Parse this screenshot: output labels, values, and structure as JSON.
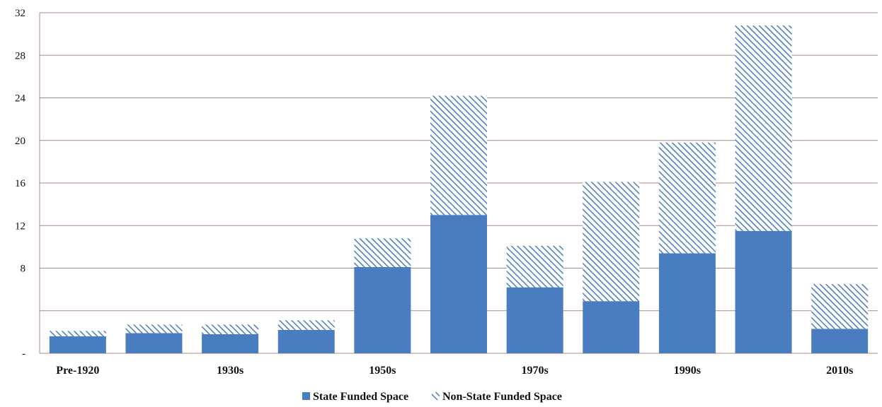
{
  "chart_data": {
    "type": "bar",
    "stacked": true,
    "categories": [
      "Pre-1920",
      "",
      "1930s",
      "",
      "1950s",
      "",
      "1970s",
      "",
      "1990s",
      "",
      "2010s"
    ],
    "series": [
      {
        "name": "State Funded Space",
        "values": [
          1.6,
          1.9,
          1.8,
          2.2,
          8.1,
          13.0,
          6.2,
          4.9,
          9.4,
          11.5,
          2.3
        ],
        "color": "#4a7dc0",
        "pattern": "solid"
      },
      {
        "name": "Non-State Funded Space",
        "values": [
          0.5,
          0.8,
          0.9,
          0.9,
          2.7,
          11.2,
          3.9,
          11.2,
          10.4,
          19.3,
          4.2
        ],
        "color": "#4a7dc0",
        "pattern": "diagonal-hatch"
      }
    ],
    "yticks": [
      "-",
      "",
      "8",
      "12",
      "16",
      "20",
      "24",
      "28",
      "32"
    ],
    "ylim": [
      0,
      32
    ],
    "grid": true,
    "legend_position": "bottom",
    "title": "",
    "xlabel": "",
    "ylabel": ""
  }
}
